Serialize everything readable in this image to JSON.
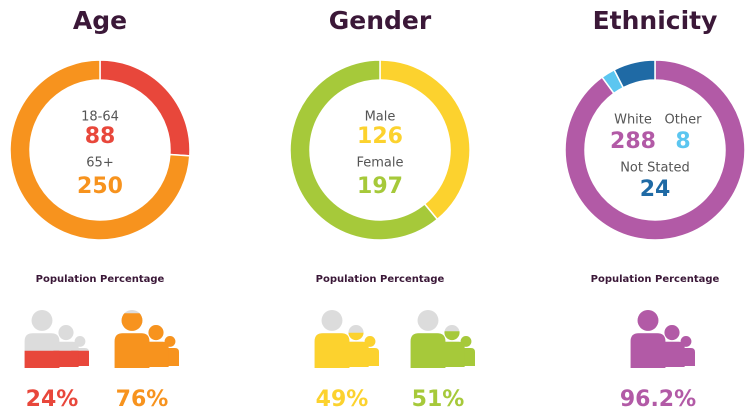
{
  "chart_data": [
    {
      "type": "donut",
      "title": "Age",
      "categories": [
        "18-64",
        "65+"
      ],
      "values": [
        88,
        250
      ],
      "colors": [
        "#e8473b",
        "#f7931e"
      ],
      "percent_title": "Population Percentage",
      "percentages": [
        24,
        76
      ],
      "percentage_labels": [
        "24%",
        "76%"
      ]
    },
    {
      "type": "donut",
      "title": "Gender",
      "categories": [
        "Male",
        "Female"
      ],
      "values": [
        126,
        197
      ],
      "colors": [
        "#fcd22e",
        "#a6c93a"
      ],
      "percent_title": "Population Percentage",
      "percentages": [
        49,
        51
      ],
      "percentage_labels": [
        "49%",
        "51%"
      ]
    },
    {
      "type": "donut",
      "title": "Ethnicity",
      "categories": [
        "White",
        "Other",
        "Not Stated"
      ],
      "values": [
        288,
        8,
        24
      ],
      "colors": [
        "#b25aa6",
        "#5cc6f0",
        "#1f6aa5"
      ],
      "percent_title": "Population Percentage",
      "percentages": [
        96.2
      ],
      "percentage_labels": [
        "96.2%"
      ]
    }
  ]
}
